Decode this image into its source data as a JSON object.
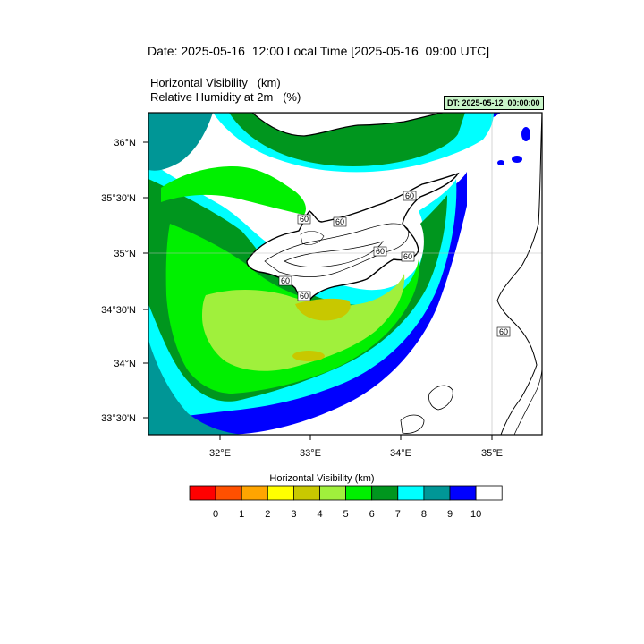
{
  "header": {
    "date_line": "Date: 2025-05-16  12:00 Local Time [2025-05-16  09:00 UTC]",
    "var_line_1": "Horizontal Visibility   (km)",
    "var_line_2": "Relative Humidity at 2m   (%)",
    "dt_badge": "DT: 2025-05-12_00:00:00"
  },
  "map": {
    "lat_ticks": [
      "36°N",
      "35°30'N",
      "35°N",
      "34°30'N",
      "34°N",
      "33°30'N"
    ],
    "lon_ticks": [
      "32°E",
      "33°E",
      "34°E",
      "35°E"
    ],
    "contour_labels": [
      "60",
      "60",
      "60",
      "60",
      "60",
      "60",
      "60",
      "60"
    ]
  },
  "legend": {
    "title": "Horizontal Visibility  (km)",
    "tick_labels": [
      "0",
      "1",
      "2",
      "3",
      "4",
      "5",
      "6",
      "7",
      "8",
      "9",
      "10"
    ],
    "colors": [
      "#ff0000",
      "#ff5000",
      "#ffa500",
      "#ffff00",
      "#c8c800",
      "#a0f03c",
      "#00f000",
      "#00961e",
      "#00ffff",
      "#009696",
      "#0000ff",
      "#ffffff"
    ]
  }
}
